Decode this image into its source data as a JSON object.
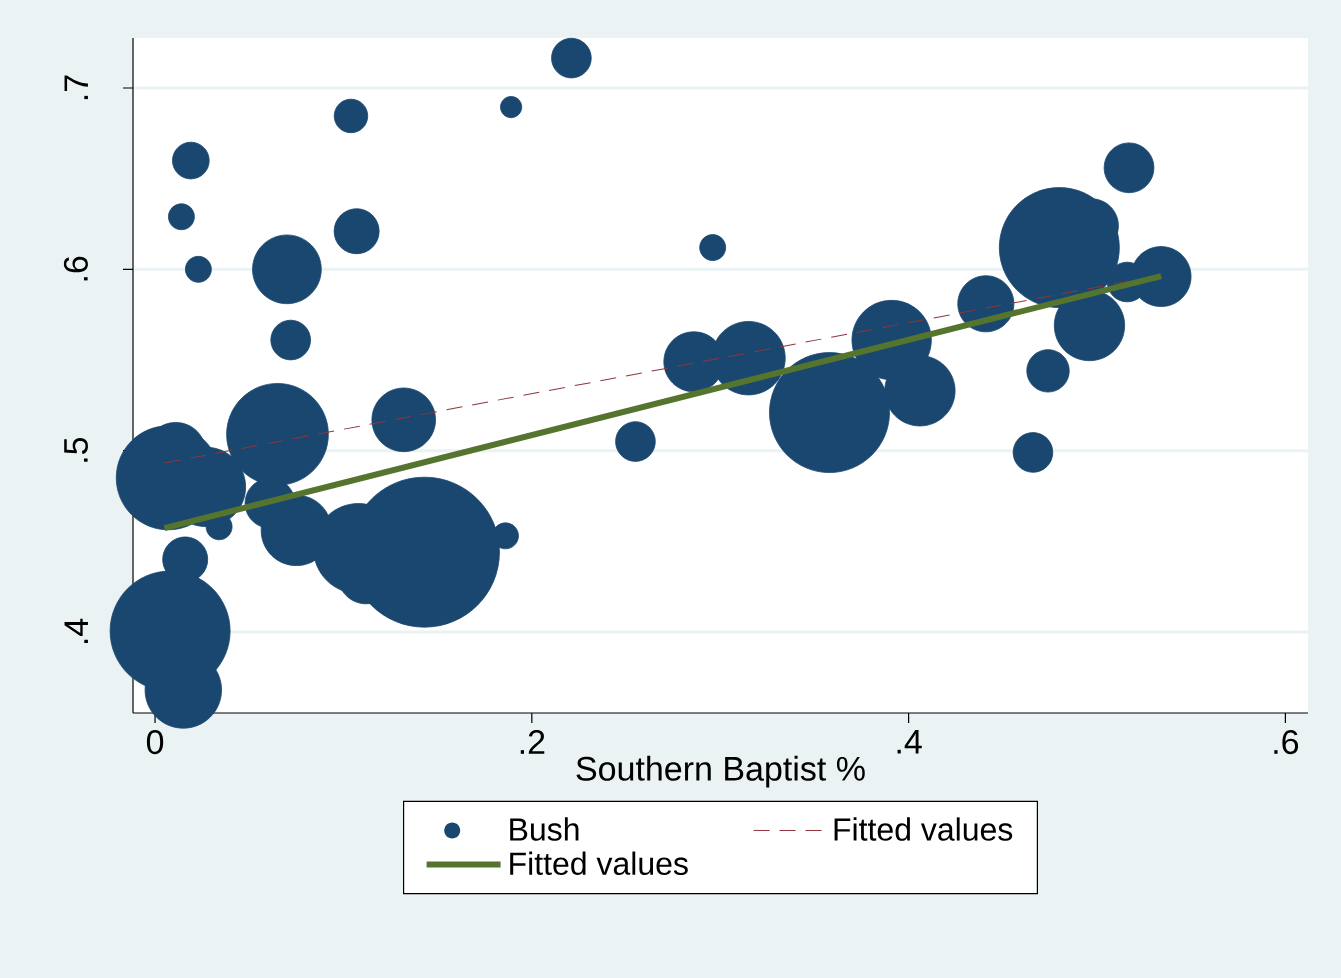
{
  "chart_data": {
    "type": "bubble",
    "xlabel": "Southern Baptist %",
    "xlim": [
      -0.0117,
      0.612
    ],
    "ylim": [
      0.3553,
      0.7276
    ],
    "xticks": [
      0,
      {
        "value": 0.2,
        "label": ".2"
      },
      {
        "value": 0.4,
        "label": ".4"
      },
      {
        "value": 0.6,
        "label": ".6"
      }
    ],
    "yticks": [
      {
        "value": 0.4,
        "label": ".4"
      },
      {
        "value": 0.5,
        "label": ".5"
      },
      {
        "value": 0.6,
        "label": ".6"
      },
      {
        "value": 0.7,
        "label": ".7"
      }
    ],
    "grid": "y",
    "legend": "bottom",
    "series": [
      {
        "name": "Bush",
        "color": "#1a476f",
        "x": [
          0.221,
          0.189,
          0.104,
          0.019,
          0.014,
          0.023,
          0.107,
          0.07,
          0.072,
          0.296,
          0.517,
          0.48,
          0.497,
          0.534,
          0.516,
          0.441,
          0.496,
          0.474,
          0.466,
          0.391,
          0.406,
          0.286,
          0.315,
          0.358,
          0.255,
          0.132,
          0.065,
          0.007,
          0.027,
          0.011,
          0.075,
          0.034,
          0.016,
          0.108,
          0.112,
          0.143,
          0.186,
          0.008,
          0.015,
          0.061
        ],
        "values": [
          0.7165,
          0.6895,
          0.6846,
          0.66,
          0.629,
          0.6,
          0.621,
          0.6,
          0.561,
          0.612,
          0.656,
          0.612,
          0.624,
          0.596,
          0.593,
          0.581,
          0.569,
          0.544,
          0.499,
          0.561,
          0.533,
          0.549,
          0.551,
          0.521,
          0.505,
          0.517,
          0.509,
          0.485,
          0.48,
          0.499,
          0.456,
          0.458,
          0.44,
          0.446,
          0.431,
          0.444,
          0.453,
          0.4005,
          0.368,
          0.471
        ],
        "sizes": [
          0.07,
          0.02,
          0.05,
          0.06,
          0.03,
          0.03,
          0.09,
          0.21,
          0.07,
          0.03,
          0.11,
          0.64,
          0.13,
          0.16,
          0.07,
          0.14,
          0.22,
          0.08,
          0.07,
          0.28,
          0.22,
          0.16,
          0.24,
          0.64,
          0.07,
          0.18,
          0.46,
          0.48,
          0.28,
          0.16,
          0.22,
          0.03,
          0.09,
          0.36,
          0.14,
          1,
          0.03,
          0.64,
          0.26,
          0.11
        ]
      },
      {
        "name": "Fitted values",
        "type": "line",
        "color": "#90353b",
        "line_style": "dashed",
        "x": [
          0.005,
          0.517
        ],
        "values": [
          0.4932,
          0.5935
        ]
      },
      {
        "name": "Fitted values",
        "type": "line",
        "color": "#55752f",
        "line_style": "solid",
        "x": [
          0.005,
          0.534
        ],
        "values": [
          0.4573,
          0.5963
        ]
      }
    ]
  }
}
